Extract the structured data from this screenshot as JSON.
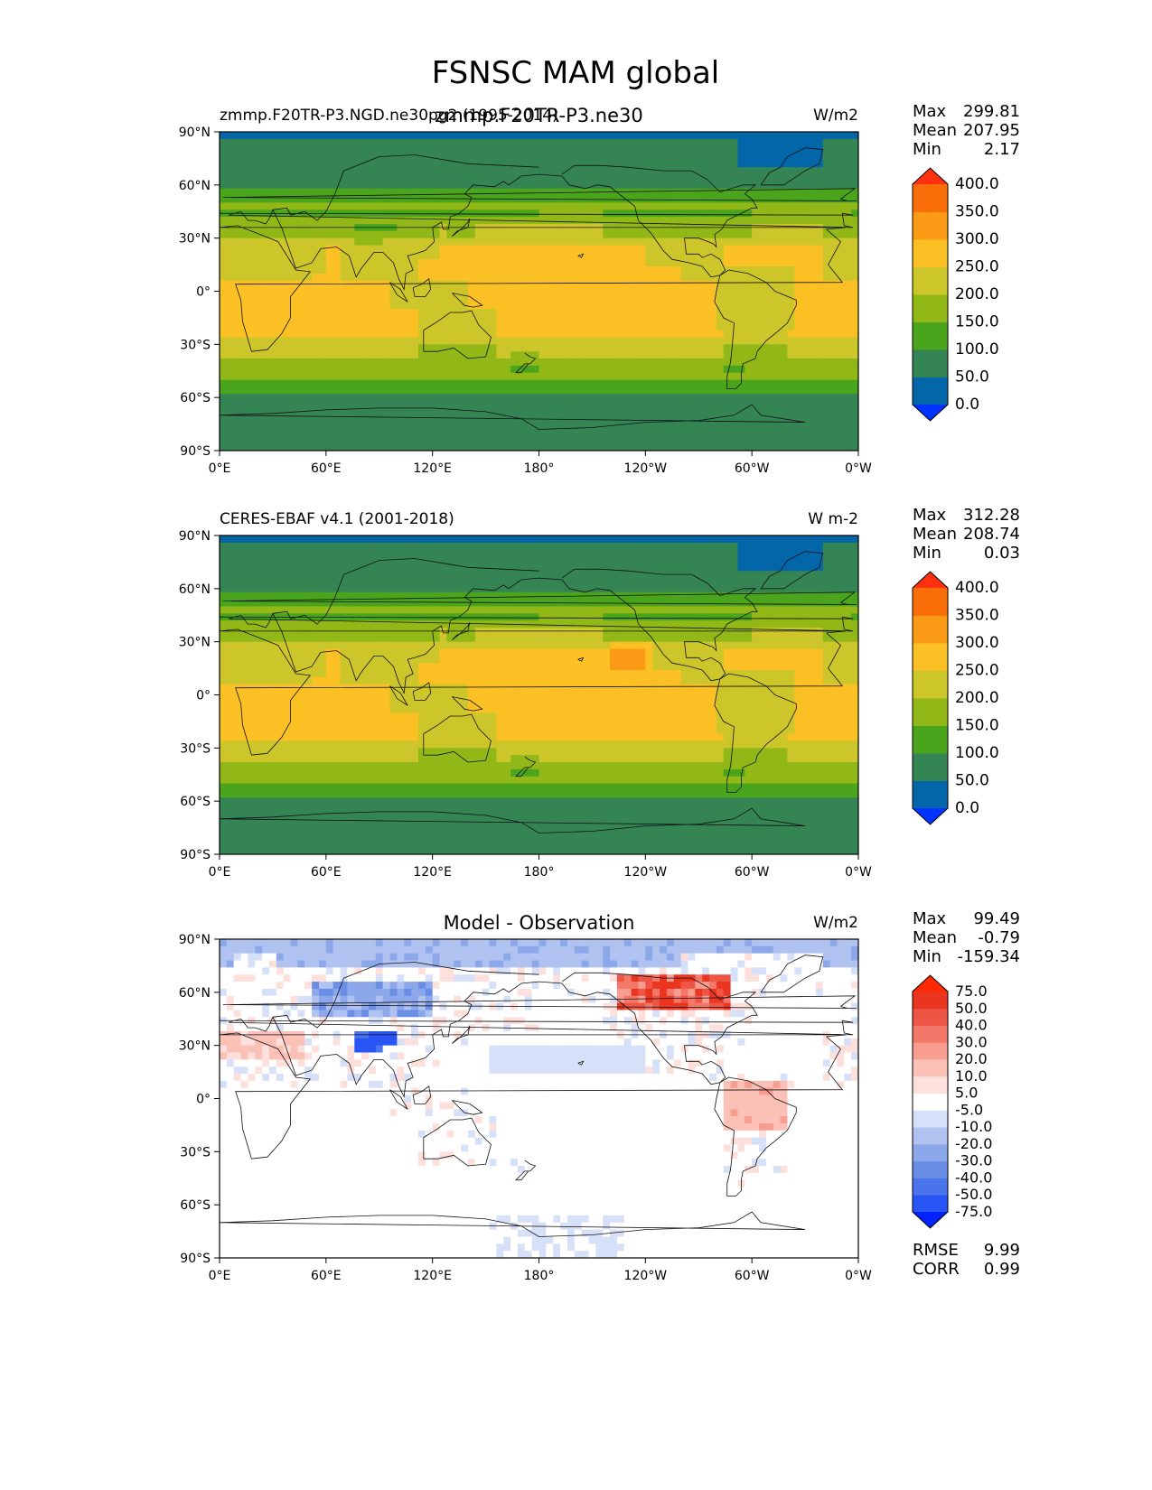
{
  "figure_title": "FSNSC MAM global",
  "panels": [
    {
      "id": "model",
      "title_left": "zmmp.F20TR-P3.NGD.ne30pg2 (1995-2014)",
      "title_center": "zmmp.F20TR-P3.ne30",
      "units": "W/m2",
      "stats": {
        "max": "299.81",
        "mean": "207.95",
        "min": "2.17"
      },
      "colorbar": {
        "levels": [
          "0.0",
          "50.0",
          "100.0",
          "150.0",
          "200.0",
          "250.0",
          "300.0",
          "350.0",
          "400.0"
        ],
        "colors": [
          "#0033ff",
          "#0366a8",
          "#358454",
          "#4ba51c",
          "#92b818",
          "#cdc62a",
          "#fbc024",
          "#fb9a14",
          "#fa6e0a",
          "#ff3010"
        ]
      },
      "field": "model"
    },
    {
      "id": "obs",
      "title_left": "CERES-EBAF v4.1 (2001-2018)",
      "title_center": "",
      "units": "W m-2",
      "stats": {
        "max": "312.28",
        "mean": "208.74",
        "min": "0.03"
      },
      "colorbar": {
        "levels": [
          "0.0",
          "50.0",
          "100.0",
          "150.0",
          "200.0",
          "250.0",
          "300.0",
          "350.0",
          "400.0"
        ],
        "colors": [
          "#0033ff",
          "#0366a8",
          "#358454",
          "#4ba51c",
          "#92b818",
          "#cdc62a",
          "#fbc024",
          "#fb9a14",
          "#fa6e0a",
          "#ff3010"
        ]
      },
      "field": "obs"
    },
    {
      "id": "diff",
      "title_left": "",
      "title_center": "Model - Observation",
      "units": "W/m2",
      "stats": {
        "max": "99.49",
        "mean": "-0.79",
        "min": "-159.34"
      },
      "colorbar": {
        "levels": [
          "-75.0",
          "-50.0",
          "-40.0",
          "-30.0",
          "-20.0",
          "-10.0",
          "-5.0",
          "5.0",
          "10.0",
          "20.0",
          "30.0",
          "40.0",
          "50.0",
          "75.0"
        ],
        "colors": [
          "#0022ff",
          "#2a55f5",
          "#4a74ec",
          "#6a8ee6",
          "#8ca8ea",
          "#b0c2f0",
          "#d6e0f8",
          "#ffffff",
          "#fde0dc",
          "#fbc0b6",
          "#f89e90",
          "#f4786a",
          "#ef5544",
          "#ea3520",
          "#ff2a00"
        ]
      },
      "rmse": {
        "label": "RMSE",
        "value": "9.99"
      },
      "corr": {
        "label": "CORR",
        "value": "0.99"
      },
      "field": "diff"
    }
  ],
  "axes": {
    "lat_ticks": [
      "90°N",
      "60°N",
      "30°N",
      "0°",
      "30°S",
      "60°S",
      "90°S"
    ],
    "lon_ticks": [
      "0°E",
      "60°E",
      "120°E",
      "180°",
      "120°W",
      "60°W",
      "0°W"
    ]
  },
  "stat_labels": {
    "max": "Max",
    "mean": "Mean",
    "min": "Min"
  }
}
